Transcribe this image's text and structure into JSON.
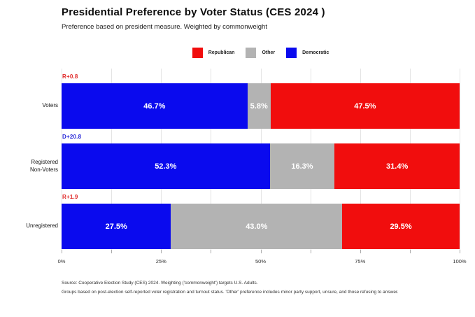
{
  "header": {
    "title": "Presidential Preference by Voter Status (CES 2024 )",
    "subtitle": "Preference based on president measure. Weighted by commonweight"
  },
  "colors": {
    "republican": "#f10d0d",
    "other": "#b3b3b3",
    "democratic": "#0a0aee",
    "annotation_rep": "#e02828",
    "annotation_dem": "#2828d8"
  },
  "legend": {
    "items": [
      {
        "label": "Republican",
        "color": "#f10d0d"
      },
      {
        "label": "Other",
        "color": "#b3b3b3"
      },
      {
        "label": "Democratic",
        "color": "#0a0aee"
      }
    ]
  },
  "chart_data": {
    "type": "bar",
    "orientation": "horizontal",
    "stacked": true,
    "title": "Presidential Preference by Voter Status (CES 2024 )",
    "subtitle": "Preference based on president measure. Weighted by commonweight",
    "categories": [
      "Voters",
      "Registered Non-Voters",
      "Unregistered"
    ],
    "series": [
      {
        "name": "Democratic",
        "color": "#0a0aee",
        "values": [
          46.7,
          52.3,
          27.5
        ]
      },
      {
        "name": "Other",
        "color": "#b3b3b3",
        "values": [
          5.8,
          16.3,
          43.0
        ]
      },
      {
        "name": "Republican",
        "color": "#f10d0d",
        "values": [
          47.5,
          31.4,
          29.5
        ]
      }
    ],
    "annotations": [
      "R+0.8",
      "D+20.8",
      "R+1.9"
    ],
    "xlim": [
      0,
      100
    ],
    "x_tick_labels": [
      "0%",
      "25%",
      "50%",
      "75%",
      "100%"
    ],
    "minor_tick_step_pct": 12.5,
    "legend_position": "top-center",
    "grid": "vertical-light"
  },
  "bars": [
    {
      "category_display": "Voters",
      "annotation": "R+0.8",
      "annotation_color": "#e02828",
      "segments": [
        {
          "label": "46.7%",
          "width": 46.7,
          "color": "#0a0aee"
        },
        {
          "label": "5.8%",
          "width": 5.8,
          "color": "#b3b3b3"
        },
        {
          "label": "47.5%",
          "width": 47.5,
          "color": "#f10d0d"
        }
      ]
    },
    {
      "category_display": "Registered\nNon-Voters",
      "annotation": "D+20.8",
      "annotation_color": "#2828d8",
      "segments": [
        {
          "label": "52.3%",
          "width": 52.3,
          "color": "#0a0aee"
        },
        {
          "label": "16.3%",
          "width": 16.3,
          "color": "#b3b3b3"
        },
        {
          "label": "31.4%",
          "width": 31.4,
          "color": "#f10d0d"
        }
      ]
    },
    {
      "category_display": "Unregistered",
      "annotation": "R+1.9",
      "annotation_color": "#e02828",
      "segments": [
        {
          "label": "27.5%",
          "width": 27.5,
          "color": "#0a0aee"
        },
        {
          "label": "43.0%",
          "width": 43.0,
          "color": "#b3b3b3"
        },
        {
          "label": "29.5%",
          "width": 29.5,
          "color": "#f10d0d"
        }
      ]
    }
  ],
  "footer": {
    "line1": "Source: Cooperative Election Study (CES) 2024. Weighting ('commonweight') targets U.S. Adults.",
    "line2": "Groups based on post-election self-reported voter registration and turnout status. 'Other' preference includes minor party support, unsure, and those refusing to answer."
  }
}
